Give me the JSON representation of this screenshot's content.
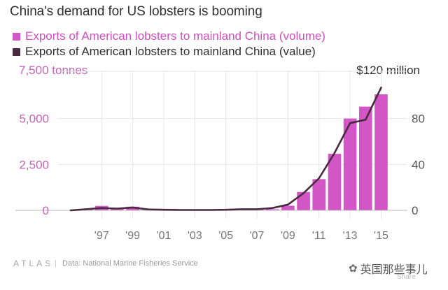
{
  "header": {
    "title": "China's demand for US lobsters is booming"
  },
  "legend": {
    "volume_label": "Exports of American lobsters to mainland China (volume)",
    "value_label": "Exports of American lobsters to mainland China (value)"
  },
  "axis_labels": {
    "left_top": "7,500 tonnes",
    "right_top": "$120 million"
  },
  "footer": {
    "logo": "ATLAS",
    "separator": "|",
    "source": "Data: National Marine Fisheries Service"
  },
  "watermark": {
    "text": "英国那些事儿",
    "share": "Share"
  },
  "colors": {
    "volume": "#d256c6",
    "value": "#4a2a3f",
    "grid": "#e6e6e6",
    "baseline": "#b8b8b8"
  },
  "chart_data": {
    "type": "bar",
    "title": "China's demand for US lobsters is booming",
    "x": [
      1995,
      1996,
      1997,
      1998,
      1999,
      2000,
      2001,
      2002,
      2003,
      2004,
      2005,
      2006,
      2007,
      2008,
      2009,
      2010,
      2011,
      2012,
      2013,
      2014,
      2015
    ],
    "x_tick_values": [
      1997,
      1999,
      2001,
      2003,
      2005,
      2007,
      2009,
      2011,
      2013,
      2015
    ],
    "x_tick_labels": [
      "'97",
      "'99",
      "'01",
      "'03",
      "'05",
      "'07",
      "'09",
      "'11",
      "'13",
      "'15"
    ],
    "x_range": [
      1994.6,
      2015.7
    ],
    "left_axis": {
      "label": "7,500 tonnes",
      "range": [
        0,
        7500
      ],
      "ticks": [
        0,
        2500,
        5000
      ],
      "tick_labels": [
        "0",
        "2,500",
        "5,000"
      ]
    },
    "right_axis": {
      "label": "$120 million",
      "range": [
        0,
        120
      ],
      "ticks": [
        0,
        40,
        80
      ],
      "tick_labels": [
        "0",
        "40",
        "80"
      ]
    },
    "series": [
      {
        "name": "Exports of American lobsters to mainland China (volume)",
        "type": "bar",
        "axis": "left",
        "values": [
          0,
          60,
          240,
          140,
          200,
          30,
          30,
          20,
          20,
          20,
          30,
          40,
          40,
          60,
          250,
          1000,
          1700,
          3080,
          5000,
          5650,
          6320
        ]
      },
      {
        "name": "Exports of American lobsters to mainland China (value)",
        "type": "line",
        "axis": "right",
        "values": [
          0,
          1,
          2,
          1.5,
          2.5,
          0.8,
          0.5,
          0.3,
          0.3,
          0.3,
          0.5,
          1,
          1,
          2,
          5,
          15,
          28,
          50,
          76,
          79,
          107
        ]
      }
    ],
    "grid": true,
    "legend_position": "top-left"
  }
}
